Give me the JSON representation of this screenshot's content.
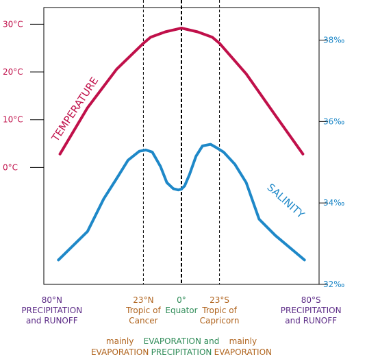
{
  "chart_data": {
    "type": "line",
    "x_axis": {
      "ticks": [
        {
          "lat": -80,
          "label": "80°N",
          "sub": [
            "PRECIPITATION",
            "and RUNOFF"
          ]
        },
        {
          "lat": -23.5,
          "label": "23°N",
          "sub": [
            "Tropic of",
            "Cancer"
          ]
        },
        {
          "lat": 0,
          "label": "0°",
          "sub": [
            "Equator"
          ]
        },
        {
          "lat": 23.5,
          "label": "23°S",
          "sub": [
            "Tropic of",
            "Capricorn"
          ]
        },
        {
          "lat": 80,
          "label": "80°S",
          "sub": [
            "PRECIPITATION",
            "and RUNOFF"
          ]
        }
      ],
      "xlim": [
        -85,
        85
      ]
    },
    "left_axis": {
      "unit": "°C",
      "ticks": [
        "30°C",
        "20°C",
        "10°C",
        "0°C"
      ],
      "tick_values": [
        30,
        20,
        10,
        0
      ],
      "ylim": [
        -24.5,
        33.5
      ]
    },
    "right_axis": {
      "unit": "‰",
      "ticks": [
        "38‰",
        "36‰",
        "34‰",
        "32‰"
      ],
      "tick_values": [
        38,
        36,
        34,
        32
      ],
      "ylim": [
        32,
        38.8
      ]
    },
    "bottom_notes": [
      {
        "lines": [
          "mainly",
          "EVAPORATION"
        ],
        "color": "#b0641e",
        "at": -38
      },
      {
        "lines": [
          "EVAPORATION and",
          "PRECIPITATION"
        ],
        "color": "#2e8b57",
        "at": 0
      },
      {
        "lines": [
          "mainly",
          "EVAPORATION"
        ],
        "color": "#b0641e",
        "at": 38
      }
    ],
    "series": [
      {
        "name": "TEMPERATURE",
        "axis": "left",
        "color": "#c0104a",
        "x": [
          -75,
          -58,
          -40,
          -23.5,
          -19,
          -10,
          0,
          10,
          19,
          23.5,
          40,
          58,
          75
        ],
        "y": [
          2.8,
          12.5,
          20.6,
          26,
          27.3,
          28.4,
          29.2,
          28.4,
          27.3,
          26,
          19.6,
          10.9,
          2.8
        ]
      },
      {
        "name": "SALINITY",
        "axis": "right",
        "color": "#1e88c8",
        "x": [
          -76,
          -58,
          -48,
          -40,
          -33,
          -26,
          -22,
          -18,
          -13,
          -9,
          -5,
          -2,
          0,
          2,
          5,
          9,
          13,
          18,
          22,
          26,
          33,
          40,
          48,
          58,
          76
        ],
        "y": [
          32.6,
          33.3,
          34.1,
          34.6,
          35.05,
          35.27,
          35.3,
          35.25,
          34.9,
          34.5,
          34.35,
          34.32,
          34.34,
          34.42,
          34.7,
          35.15,
          35.4,
          35.44,
          35.35,
          35.25,
          34.95,
          34.5,
          33.6,
          33.2,
          32.6
        ]
      }
    ],
    "grid": false
  }
}
